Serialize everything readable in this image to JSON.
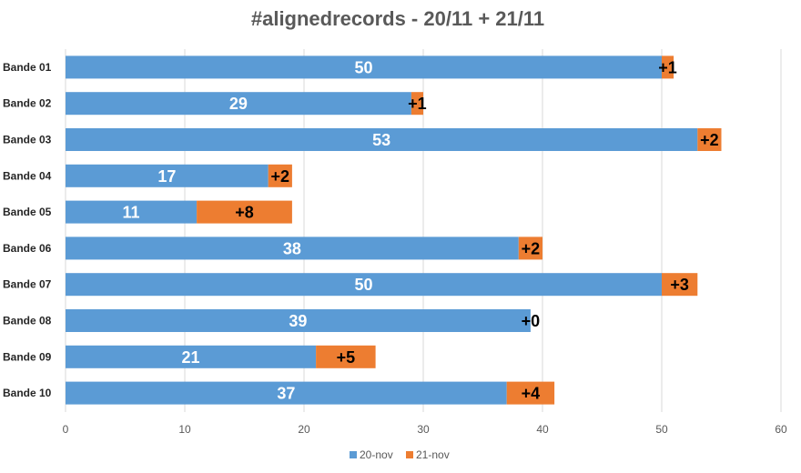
{
  "chart_data": {
    "type": "bar",
    "orientation": "horizontal",
    "stacked": true,
    "title": "#alignedrecords - 20/11 + 21/11",
    "xlabel": "",
    "ylabel": "",
    "xlim": [
      0,
      60
    ],
    "x_ticks": [
      "0",
      "10",
      "20",
      "30",
      "40",
      "50",
      "60"
    ],
    "grid": true,
    "legend_position": "bottom",
    "categories": [
      "Bande 01",
      "Bande 02",
      "Bande 03",
      "Bande 04",
      "Bande 05",
      "Bande 06",
      "Bande 07",
      "Bande 08",
      "Bande 09",
      "Bande 10"
    ],
    "series": [
      {
        "name": "20-nov",
        "color": "#5b9bd5",
        "values": [
          50,
          29,
          53,
          17,
          11,
          38,
          50,
          39,
          21,
          37
        ],
        "labels": [
          "50",
          "29",
          "53",
          "17",
          "11",
          "38",
          "50",
          "39",
          "21",
          "37"
        ]
      },
      {
        "name": "21-nov",
        "color": "#ed7d31",
        "values": [
          1,
          1,
          2,
          2,
          8,
          2,
          3,
          0,
          5,
          4
        ],
        "labels": [
          "+1",
          "+1",
          "+2",
          "+2",
          "+8",
          "+2",
          "+3",
          "+0",
          "+5",
          "+4"
        ]
      }
    ]
  }
}
